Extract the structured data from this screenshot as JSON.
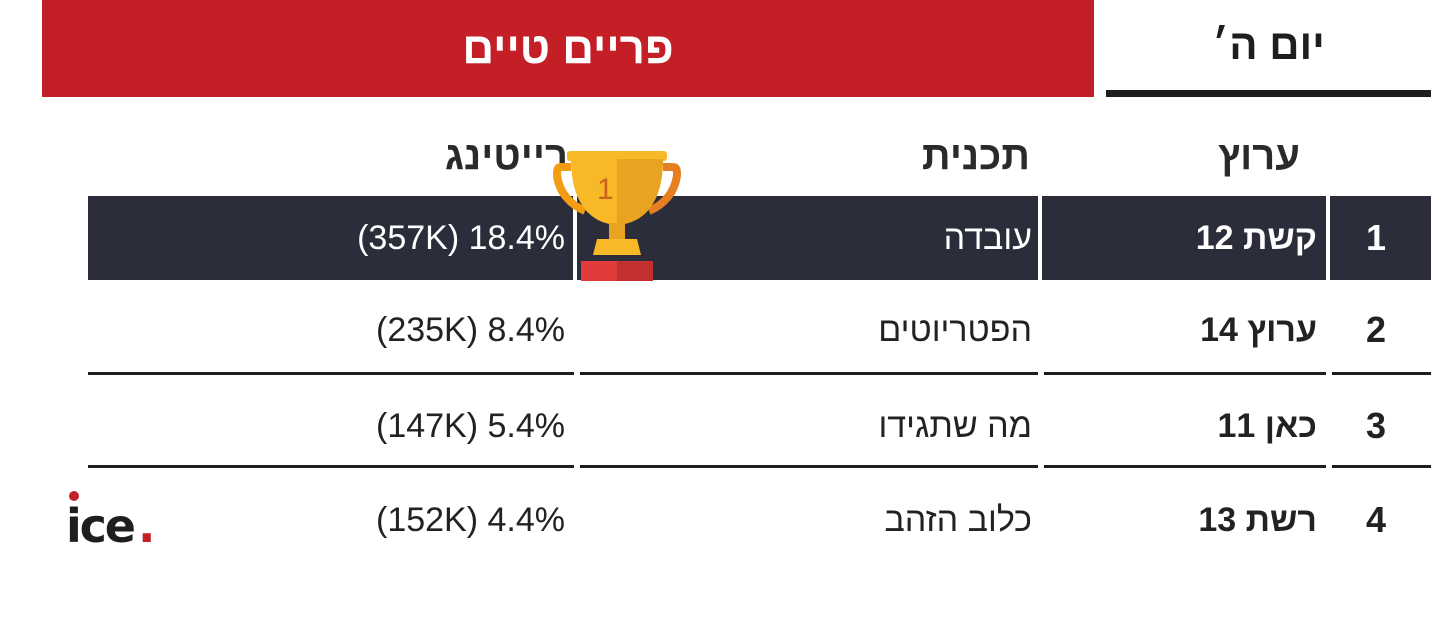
{
  "header": {
    "banner_title": "פריים טיים",
    "day_label": "יום ה׳"
  },
  "columns": {
    "channel": "ערוץ",
    "program": "תכנית",
    "rating": "רייטינג"
  },
  "rows": [
    {
      "rank": "1",
      "channel": "קשת 12",
      "program": "עובדה",
      "rating": "(357K) 18.4%"
    },
    {
      "rank": "2",
      "channel": "ערוץ 14",
      "program": "הפטריוטים",
      "rating": "(235K) 8.4%"
    },
    {
      "rank": "3",
      "channel": "כאן 11",
      "program": "מה שתגידו",
      "rating": "(147K) 5.4%"
    },
    {
      "rank": "4",
      "channel": "רשת 13",
      "program": "כלוב הזהב",
      "rating": "(152K) 4.4%"
    }
  ],
  "trophy": {
    "number": "1"
  },
  "logo": {
    "text": "ice",
    "dot": "."
  },
  "colors": {
    "banner": "#c41f27",
    "highlight_row": "#2b2d3b",
    "trophy_gold": "#f7b928",
    "trophy_base": "#e23b3b"
  }
}
